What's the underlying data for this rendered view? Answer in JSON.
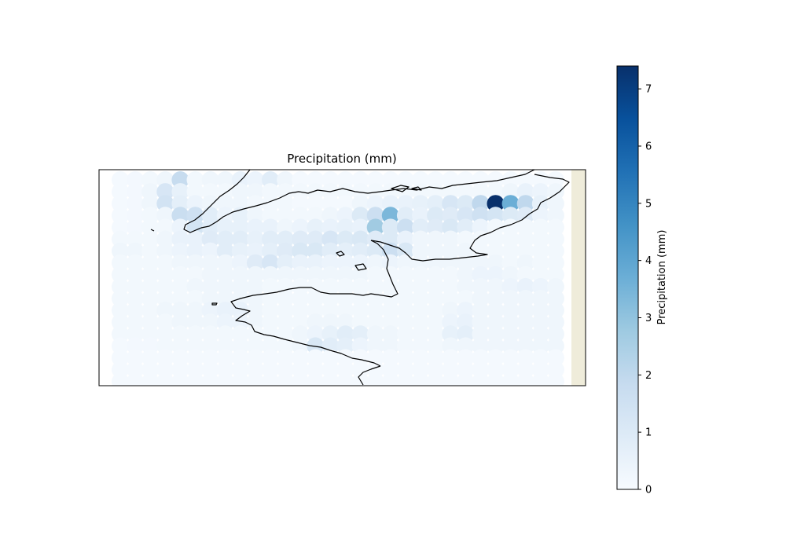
{
  "chart_data": {
    "type": "heatmap",
    "title": "Precipitation (mm)",
    "colorbar": {
      "label": "Precipitation (mm)",
      "ticks": [
        0,
        1,
        2,
        3,
        4,
        5,
        6,
        7
      ],
      "vmin": 0,
      "vmax": 7.4,
      "colormap": "Blues"
    },
    "grid": {
      "columns": 30,
      "rows": 18
    },
    "values": [
      [
        0.1,
        0.15,
        0.2,
        0.3,
        1.8,
        0.2,
        0.3,
        0.3,
        0.5,
        0.4,
        0.8,
        0.3,
        0.1,
        0.1,
        0.1,
        0.1,
        0.1,
        0.1,
        0.1,
        0.1,
        0.1,
        0.1,
        0.1,
        0.1,
        0.1,
        0.1,
        0.1,
        0.1,
        0.1,
        0.1
      ],
      [
        0.1,
        0.15,
        0.3,
        1.2,
        0.6,
        0.2,
        0.2,
        0.2,
        0.3,
        0.3,
        0.2,
        0.2,
        0.2,
        0.2,
        0.2,
        0.2,
        0.2,
        0.2,
        0.2,
        0.2,
        0.2,
        0.2,
        0.2,
        0.2,
        0.2,
        0.2,
        0.3,
        0.5,
        0.4,
        0.3
      ],
      [
        0.1,
        0.15,
        0.3,
        1.4,
        0.7,
        0.4,
        0.3,
        0.3,
        0.3,
        0.2,
        0.2,
        0.2,
        0.1,
        0.1,
        0.1,
        0.1,
        0.3,
        0.4,
        0.5,
        0.5,
        0.6,
        0.7,
        1.2,
        1.0,
        2.0,
        7.4,
        3.7,
        2.0,
        0.6,
        0.3
      ],
      [
        0.1,
        0.15,
        0.2,
        0.3,
        1.7,
        1.5,
        0.8,
        0.4,
        0.6,
        0.3,
        0.2,
        0.2,
        0.2,
        0.2,
        0.3,
        0.4,
        1.0,
        1.6,
        3.4,
        0.8,
        0.5,
        1.0,
        0.9,
        1.2,
        1.5,
        1.3,
        1.0,
        0.9,
        0.4,
        0.3
      ],
      [
        0.1,
        0.15,
        0.2,
        0.2,
        0.4,
        1.3,
        0.8,
        0.6,
        0.6,
        0.5,
        0.5,
        0.3,
        0.4,
        0.6,
        0.5,
        0.6,
        0.5,
        2.7,
        1.0,
        1.6,
        0.8,
        0.9,
        1.1,
        0.8,
        0.4,
        0.2,
        0.2,
        0.2,
        0.2,
        0.2
      ],
      [
        0.2,
        0.2,
        0.2,
        0.3,
        0.5,
        0.5,
        0.9,
        0.8,
        0.8,
        0.6,
        0.8,
        0.8,
        0.9,
        0.9,
        1.2,
        1.0,
        1.1,
        0.9,
        1.0,
        0.5,
        0.3,
        0.3,
        0.3,
        0.2,
        0.2,
        0.2,
        0.2,
        0.2,
        0.2,
        0.2
      ],
      [
        0.3,
        0.3,
        0.2,
        0.3,
        0.4,
        0.5,
        0.4,
        0.8,
        0.6,
        0.5,
        0.7,
        0.9,
        1.1,
        1.1,
        0.8,
        0.7,
        0.8,
        1.0,
        1.6,
        1.1,
        0.3,
        0.3,
        0.3,
        0.3,
        0.2,
        0.2,
        0.2,
        0.2,
        0.2,
        0.2
      ],
      [
        0.2,
        0.2,
        0.2,
        0.2,
        0.3,
        0.3,
        0.3,
        0.3,
        0.4,
        0.9,
        1.2,
        0.7,
        0.5,
        0.5,
        0.4,
        0.4,
        0.4,
        0.3,
        0.4,
        0.3,
        0.3,
        0.3,
        0.3,
        0.3,
        0.3,
        0.3,
        0.2,
        0.3,
        0.2,
        0.2
      ],
      [
        0.2,
        0.2,
        0.2,
        0.2,
        0.2,
        0.2,
        0.3,
        0.3,
        0.3,
        0.3,
        0.3,
        0.3,
        0.3,
        0.3,
        0.3,
        0.3,
        0.3,
        0.2,
        0.2,
        0.2,
        0.2,
        0.2,
        0.2,
        0.3,
        0.4,
        0.4,
        0.3,
        0.2,
        0.2,
        0.2
      ],
      [
        0.2,
        0.2,
        0.2,
        0.2,
        0.2,
        0.3,
        0.3,
        0.3,
        0.3,
        0.3,
        0.2,
        0.2,
        0.2,
        0.2,
        0.2,
        0.2,
        0.2,
        0.2,
        0.2,
        0.2,
        0.2,
        0.2,
        0.2,
        0.3,
        0.3,
        0.3,
        0.4,
        0.5,
        0.4,
        0.3
      ],
      [
        0.2,
        0.2,
        0.2,
        0.2,
        0.2,
        0.2,
        0.3,
        0.3,
        0.3,
        0.3,
        0.2,
        0.2,
        0.2,
        0.2,
        0.2,
        0.2,
        0.2,
        0.2,
        0.2,
        0.2,
        0.2,
        0.2,
        0.2,
        0.2,
        0.3,
        0.3,
        0.3,
        0.3,
        0.3,
        0.3
      ],
      [
        0.2,
        0.2,
        0.2,
        0.3,
        0.3,
        0.3,
        0.4,
        0.5,
        0.5,
        0.3,
        0.2,
        0.2,
        0.2,
        0.2,
        0.2,
        0.2,
        0.2,
        0.2,
        0.2,
        0.2,
        0.2,
        0.2,
        0.3,
        0.4,
        0.3,
        0.3,
        0.3,
        0.3,
        0.3,
        0.3
      ],
      [
        0.2,
        0.2,
        0.2,
        0.2,
        0.3,
        0.3,
        0.3,
        0.4,
        0.4,
        0.3,
        0.2,
        0.2,
        0.2,
        0.3,
        0.3,
        0.3,
        0.2,
        0.2,
        0.2,
        0.2,
        0.2,
        0.2,
        0.4,
        0.5,
        0.3,
        0.3,
        0.3,
        0.3,
        0.3,
        0.3
      ],
      [
        0.2,
        0.2,
        0.2,
        0.2,
        0.2,
        0.2,
        0.2,
        0.2,
        0.2,
        0.2,
        0.2,
        0.2,
        0.3,
        0.4,
        0.6,
        0.8,
        0.7,
        0.3,
        0.3,
        0.2,
        0.2,
        0.2,
        0.6,
        0.7,
        0.3,
        0.3,
        0.3,
        0.3,
        0.3,
        0.3
      ],
      [
        0.1,
        0.15,
        0.15,
        0.2,
        0.2,
        0.2,
        0.2,
        0.2,
        0.2,
        0.2,
        0.2,
        0.2,
        0.3,
        1.1,
        0.8,
        0.7,
        0.4,
        0.3,
        0.3,
        0.2,
        0.2,
        0.2,
        0.3,
        0.3,
        0.3,
        0.3,
        0.3,
        0.3,
        0.3,
        0.3
      ],
      [
        0.1,
        0.1,
        0.1,
        0.1,
        0.1,
        0.1,
        0.1,
        0.1,
        0.1,
        0.1,
        0.1,
        0.1,
        0.1,
        0.1,
        0.1,
        0.1,
        0.1,
        0.1,
        0.1,
        0.1,
        0.1,
        0.1,
        0.1,
        0.1,
        0.1,
        0.1,
        0.1,
        0.1,
        0.1,
        0.1
      ],
      [
        0.1,
        0.1,
        0.1,
        0.1,
        0.1,
        0.1,
        0.1,
        0.1,
        0.1,
        0.1,
        0.1,
        0.1,
        0.1,
        0.1,
        0.1,
        0.1,
        0.1,
        0.1,
        0.1,
        0.1,
        0.1,
        0.1,
        0.1,
        0.1,
        0.1,
        0.1,
        0.1,
        0.1,
        0.1,
        0.1
      ],
      [
        0.1,
        0.1,
        0.1,
        0.1,
        0.1,
        0.1,
        0.1,
        0.1,
        0.1,
        0.1,
        0.1,
        0.1,
        0.1,
        0.1,
        0.1,
        0.1,
        0.1,
        0.1,
        0.1,
        0.1,
        0.1,
        0.1,
        0.1,
        0.1,
        0.1,
        0.1,
        0.1,
        0.1,
        0.1,
        0.1
      ]
    ],
    "grid_lines": false,
    "legend_placement": "right"
  },
  "colors": {
    "land": "#efecda",
    "coastline": "#000000",
    "axes_border": "#000000",
    "cmap_low": "#f7fbff",
    "cmap_high": "#08306b"
  }
}
